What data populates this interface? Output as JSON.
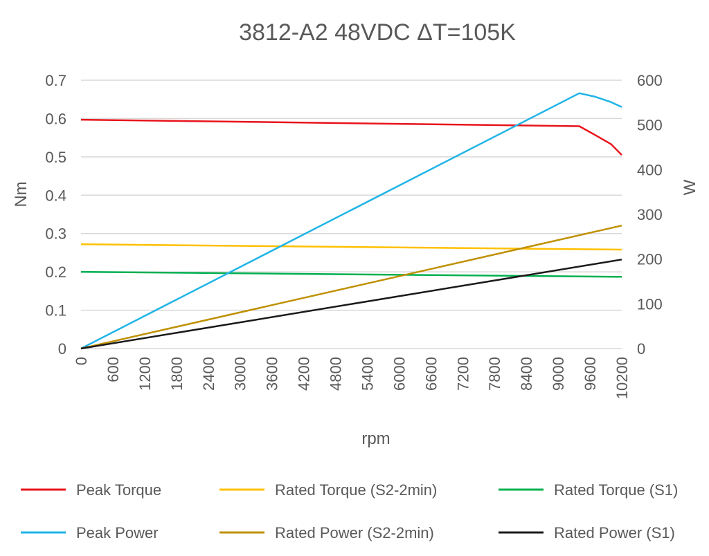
{
  "chart_data": {
    "type": "line",
    "title": "3812-A2 48VDC ΔT=105K",
    "xlabel": "rpm",
    "ylabel": "Nm",
    "y2label": "W",
    "x_ticks": [
      "0",
      "600",
      "1200",
      "1800",
      "2400",
      "3000",
      "3600",
      "4200",
      "4800",
      "5400",
      "6000",
      "6600",
      "7200",
      "7800",
      "8400",
      "9000",
      "9600",
      "10200"
    ],
    "xlim": [
      0,
      10200
    ],
    "ylim": [
      0,
      0.7
    ],
    "y_ticks": [
      "0",
      "0.1",
      "0.2",
      "0.3",
      "0.4",
      "0.5",
      "0.6",
      "0.7"
    ],
    "y2lim": [
      0,
      600
    ],
    "y2_ticks": [
      "0",
      "100",
      "200",
      "300",
      "400",
      "500",
      "600"
    ],
    "grid": true,
    "legend_position": "bottom",
    "series": [
      {
        "name": "Peak Torque",
        "axis": "left",
        "color": "#e8141b",
        "x": [
          0,
          9400,
          9700,
          10000,
          10200
        ],
        "y": [
          0.597,
          0.58,
          0.557,
          0.533,
          0.505
        ]
      },
      {
        "name": "Rated Torque (S2-2min)",
        "axis": "left",
        "color": "#ffc000",
        "x": [
          0,
          10200
        ],
        "y": [
          0.272,
          0.258
        ]
      },
      {
        "name": "Rated Torque (S1)",
        "axis": "left",
        "color": "#00b050",
        "x": [
          0,
          10200
        ],
        "y": [
          0.2,
          0.187
        ]
      },
      {
        "name": "Peak Power",
        "axis": "right",
        "color": "#1fb4e6",
        "x": [
          0,
          9400,
          9700,
          10000,
          10200
        ],
        "y": [
          0,
          571,
          563,
          551,
          540
        ]
      },
      {
        "name": "Rated Power (S2-2min)",
        "axis": "right",
        "color": "#bf9000",
        "x": [
          0,
          10200
        ],
        "y": [
          0,
          275
        ]
      },
      {
        "name": "Rated Power (S1)",
        "axis": "right",
        "color": "#1a1a1a",
        "x": [
          0,
          10200
        ],
        "y": [
          0,
          199
        ]
      }
    ]
  }
}
